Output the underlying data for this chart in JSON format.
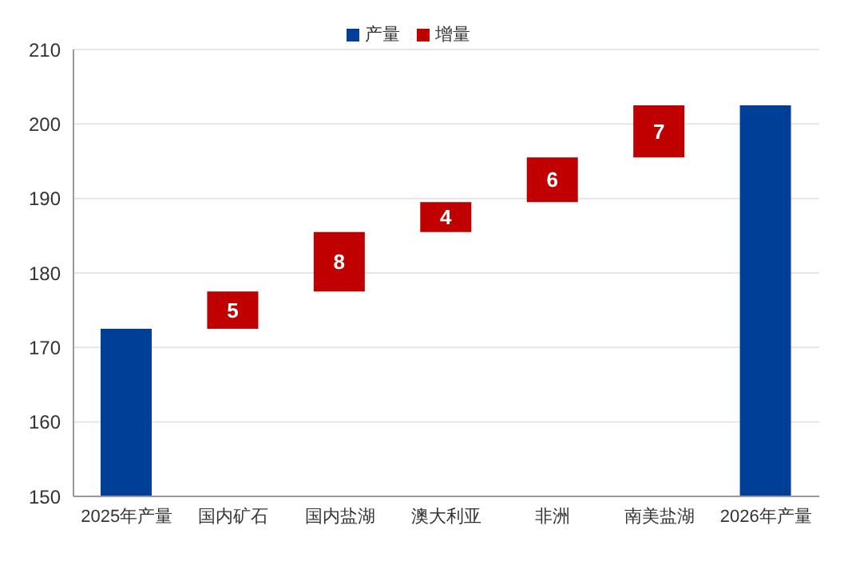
{
  "chart_data": {
    "type": "bar",
    "categories": [
      "2025年产量",
      "国内矿石",
      "国内盐湖",
      "澳大利亚",
      "非洲",
      "南美盐湖",
      "2026年产量"
    ],
    "series": [
      {
        "name": "产量",
        "color": "#003f98",
        "values": [
          172.5,
          null,
          null,
          null,
          null,
          null,
          202.5
        ]
      },
      {
        "name": "增量",
        "color": "#c00000",
        "values": [
          null,
          5,
          8,
          4,
          6,
          7,
          null
        ],
        "base": [
          null,
          172.5,
          177.5,
          185.5,
          189.5,
          195.5,
          null
        ],
        "value_labels": [
          null,
          "5",
          "8",
          "4",
          "6",
          "7",
          null
        ]
      }
    ],
    "ylim": [
      150,
      210
    ],
    "yticks": [
      150,
      160,
      170,
      180,
      190,
      200,
      210
    ],
    "grid": "y",
    "legend": "top"
  }
}
